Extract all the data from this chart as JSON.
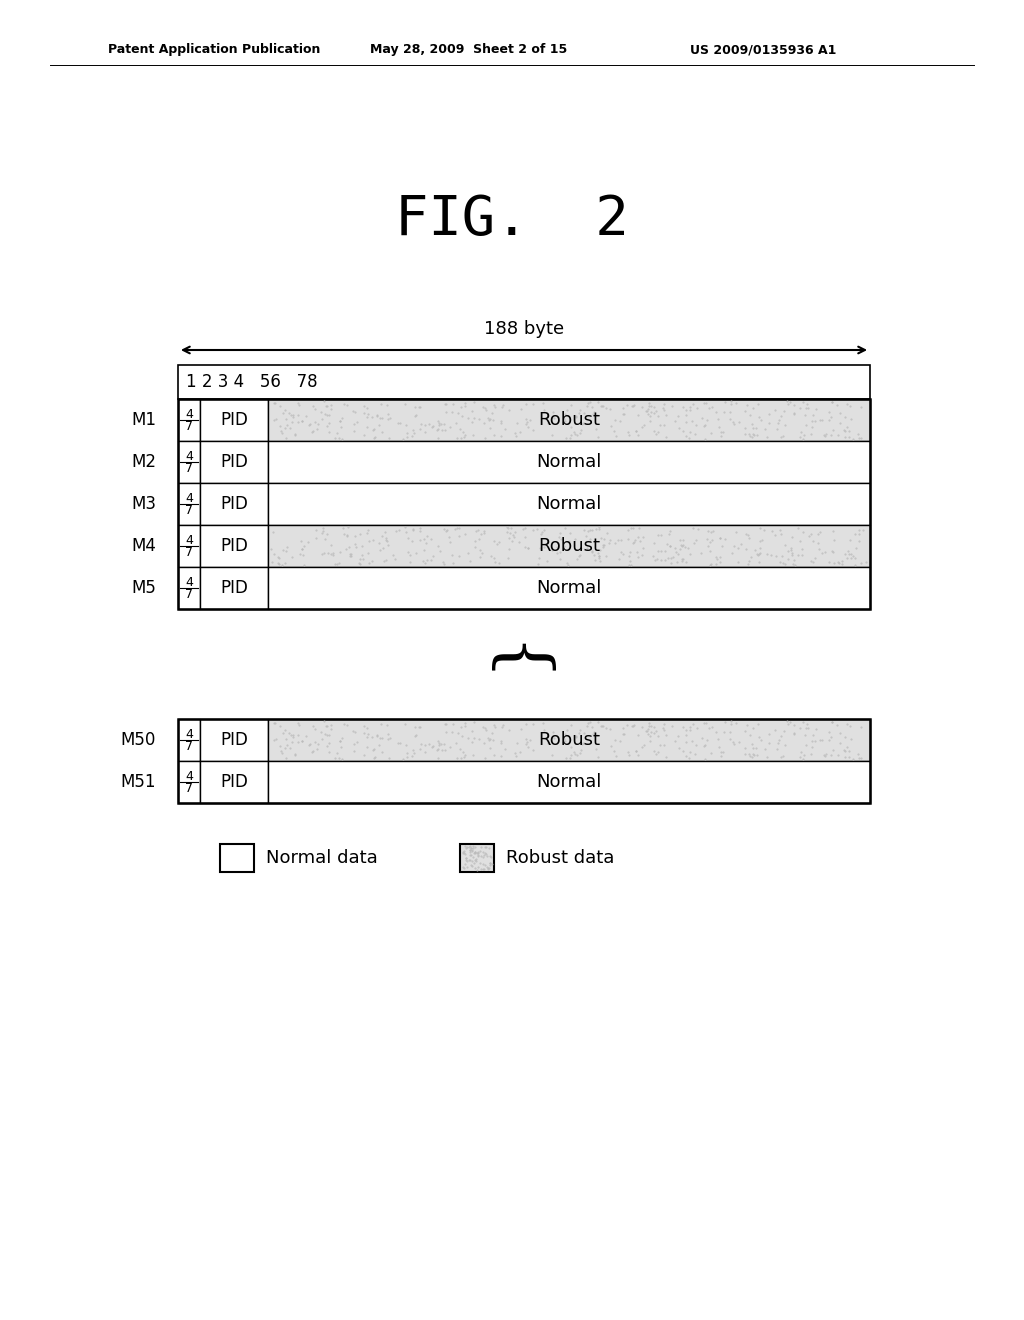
{
  "title": "FIG.  2",
  "header_text": "Patent Application Publication",
  "header_date": "May 28, 2009  Sheet 2 of 15",
  "header_patent": "US 2009/0135936 A1",
  "byte_label": "188 byte",
  "col_header": "1 2 3 4   56   78",
  "rows_top": [
    {
      "label": "M1",
      "type": "robust",
      "content": "Robust"
    },
    {
      "label": "M2",
      "type": "normal",
      "content": "Normal"
    },
    {
      "label": "M3",
      "type": "normal",
      "content": "Normal"
    },
    {
      "label": "M4",
      "type": "robust",
      "content": "Robust"
    },
    {
      "label": "M5",
      "type": "normal",
      "content": "Normal"
    }
  ],
  "rows_bottom": [
    {
      "label": "M50",
      "type": "robust",
      "content": "Robust"
    },
    {
      "label": "M51",
      "type": "normal",
      "content": "Normal"
    }
  ],
  "normal_color": "#ffffff",
  "robust_color": "#e0e0e0",
  "legend_normal_label": "Normal data",
  "legend_robust_label": "Robust data",
  "bg_color": "#ffffff"
}
